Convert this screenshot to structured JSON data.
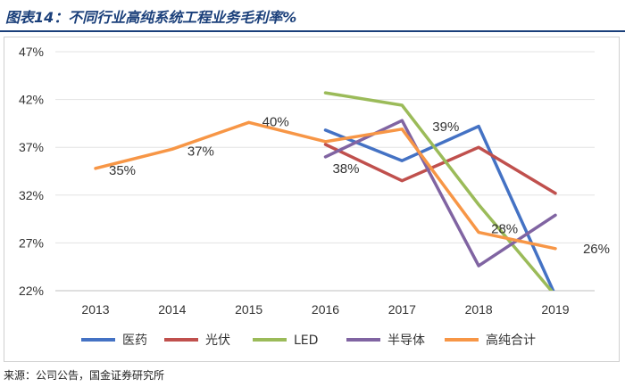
{
  "figure": {
    "title": "图表14：不同行业高纯系统工程业务毛利率%",
    "source": "来源：公司公告，国金证券研究所"
  },
  "chart_data": {
    "type": "line",
    "title": "图表14：不同行业高纯系统工程业务毛利率%",
    "xlabel": "",
    "ylabel": "",
    "categories": [
      "2013",
      "2014",
      "2015",
      "2016",
      "2017",
      "2018",
      "2019"
    ],
    "ylim": [
      22,
      47
    ],
    "yticks": [
      22,
      27,
      32,
      37,
      42,
      47
    ],
    "ytick_labels": [
      "22%",
      "27%",
      "32%",
      "37%",
      "42%",
      "47%"
    ],
    "grid": true,
    "legend_position": "bottom",
    "series": [
      {
        "name": "医药",
        "color": "#4472c4",
        "values": [
          null,
          null,
          null,
          38.8,
          35.6,
          39.2,
          21.5
        ]
      },
      {
        "name": "光伏",
        "color": "#c0504d",
        "values": [
          null,
          null,
          null,
          37.3,
          33.5,
          37.0,
          32.2
        ]
      },
      {
        "name": "LED",
        "color": "#9bbb59",
        "values": [
          null,
          null,
          null,
          42.7,
          41.4,
          31.0,
          21.5
        ]
      },
      {
        "name": "半导体",
        "color": "#8064a2",
        "values": [
          null,
          null,
          null,
          36.0,
          39.8,
          24.6,
          29.9
        ]
      },
      {
        "name": "高纯合计",
        "color": "#f79646",
        "values": [
          34.8,
          36.8,
          39.6,
          37.6,
          38.9,
          28.1,
          26.4
        ]
      }
    ],
    "data_labels": [
      {
        "series": "高纯合计",
        "index": 0,
        "text": "35%"
      },
      {
        "series": "高纯合计",
        "index": 1,
        "text": "37%"
      },
      {
        "series": "高纯合计",
        "index": 2,
        "text": "40%"
      },
      {
        "series": "高纯合计",
        "index": 3,
        "text": "38%"
      },
      {
        "series": "高纯合计",
        "index": 4,
        "text": "39%"
      },
      {
        "series": "高纯合计",
        "index": 5,
        "text": "28%"
      },
      {
        "series": "高纯合计",
        "index": 6,
        "text": "26%"
      }
    ]
  }
}
